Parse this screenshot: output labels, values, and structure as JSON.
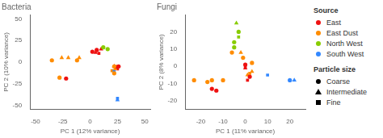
{
  "chart_data": [
    {
      "type": "scatter",
      "title": "Bacteria",
      "x_label": "PC 1 (12% variance)",
      "y_label": "PC 2 (10% variance)",
      "xlim": [
        -55,
        55
      ],
      "ylim": [
        -55,
        55
      ],
      "xticks": [
        -50,
        -25,
        0,
        25,
        50
      ],
      "yticks": [
        -50,
        -25,
        0,
        25,
        50
      ],
      "grid": false,
      "series": [
        {
          "name": "Coarse",
          "marker": "circle",
          "x": [
            -35,
            -28,
            -22,
            -12,
            2,
            6,
            12,
            16,
            22,
            22,
            26
          ],
          "values": [
            2,
            -18,
            -19,
            2,
            12,
            14,
            17,
            15,
            -5,
            -13,
            -5
          ],
          "colors": [
            "#FF8C00",
            "#FF8C00",
            "#EE1111",
            "#FF8C00",
            "#EE1111",
            "#EE1111",
            "#88CC00",
            "#88CC00",
            "#FF8C00",
            "#FF8C00",
            "#EE1111"
          ]
        },
        {
          "name": "Intermediate",
          "marker": "triangle",
          "x": [
            -26,
            -20,
            -10,
            5,
            10,
            22,
            23,
            24,
            25
          ],
          "values": [
            5,
            5,
            5,
            11,
            15,
            -5,
            -8,
            -6,
            -44
          ],
          "colors": [
            "#FF8C00",
            "#FF8C00",
            "#FF8C00",
            "#EE1111",
            "#EE1111",
            "#EE1111",
            "#FF8C00",
            "#EE1111",
            "#3388FF"
          ]
        },
        {
          "name": "Fine",
          "marker": "square",
          "x": [
            8,
            20,
            24,
            25,
            25,
            22
          ],
          "values": [
            10,
            -10,
            -5,
            -8,
            -42,
            -10
          ],
          "colors": [
            "#EE1111",
            "#FF8C00",
            "#FF8C00",
            "#EE1111",
            "#3388FF",
            "#3388FF"
          ]
        }
      ]
    },
    {
      "type": "scatter",
      "title": "Fungi",
      "x_label": "PC 1 (11% variance)",
      "y_label": "PC 2 (8% variance)",
      "xlim": [
        -27,
        27
      ],
      "ylim": [
        -25,
        30
      ],
      "xticks": [
        -20,
        -10,
        0,
        10,
        20
      ],
      "yticks": [
        -20,
        -10,
        0,
        10,
        20
      ],
      "grid": false,
      "series": [
        {
          "name": "Coarse",
          "marker": "circle",
          "x": [
            -23,
            -17,
            -15,
            -13,
            -15,
            -10,
            -6,
            -5,
            -5,
            -3,
            -1,
            0,
            2,
            3,
            20
          ],
          "values": [
            -8,
            -9,
            -13,
            -14,
            -8,
            -8,
            8,
            11,
            14,
            20,
            5,
            1,
            -6,
            2,
            -8
          ],
          "colors": [
            "#FF8C00",
            "#FF8C00",
            "#EE1111",
            "#EE1111",
            "#FF8C00",
            "#FF8C00",
            "#FF8C00",
            "#88CC00",
            "#88CC00",
            "#88CC00",
            "#FF8C00",
            "#EE1111",
            "#EE1111",
            "#FF8C00",
            "#3388FF"
          ]
        },
        {
          "name": "Intermediate",
          "marker": "triangle",
          "x": [
            -4,
            -2,
            0,
            1,
            3,
            22
          ],
          "values": [
            25,
            8,
            -1,
            -5,
            -3,
            -8
          ],
          "colors": [
            "#88CC00",
            "#FF8C00",
            "#EE1111",
            "#FF8C00",
            "#FF8C00",
            "#3388FF"
          ]
        },
        {
          "name": "Fine",
          "marker": "square",
          "x": [
            -3,
            0,
            1,
            2,
            10
          ],
          "values": [
            17,
            0,
            -8,
            -4,
            -5
          ],
          "colors": [
            "#88CC00",
            "#EE1111",
            "#EE1111",
            "#FF8C00",
            "#3388FF"
          ]
        }
      ]
    }
  ],
  "legend_groups": [
    {
      "title": "Source",
      "entries": [
        {
          "name": "East",
          "color": "#EE1111"
        },
        {
          "name": "East Dust",
          "color": "#FF8C00"
        },
        {
          "name": "North West",
          "color": "#88CC00"
        },
        {
          "name": "South West",
          "color": "#3388FF"
        }
      ]
    },
    {
      "title": "Particle size",
      "entries": [
        {
          "name": "Coarse",
          "marker": "circle"
        },
        {
          "name": "Intermediate",
          "marker": "triangle"
        },
        {
          "name": "Fine",
          "marker": "square"
        }
      ]
    }
  ]
}
